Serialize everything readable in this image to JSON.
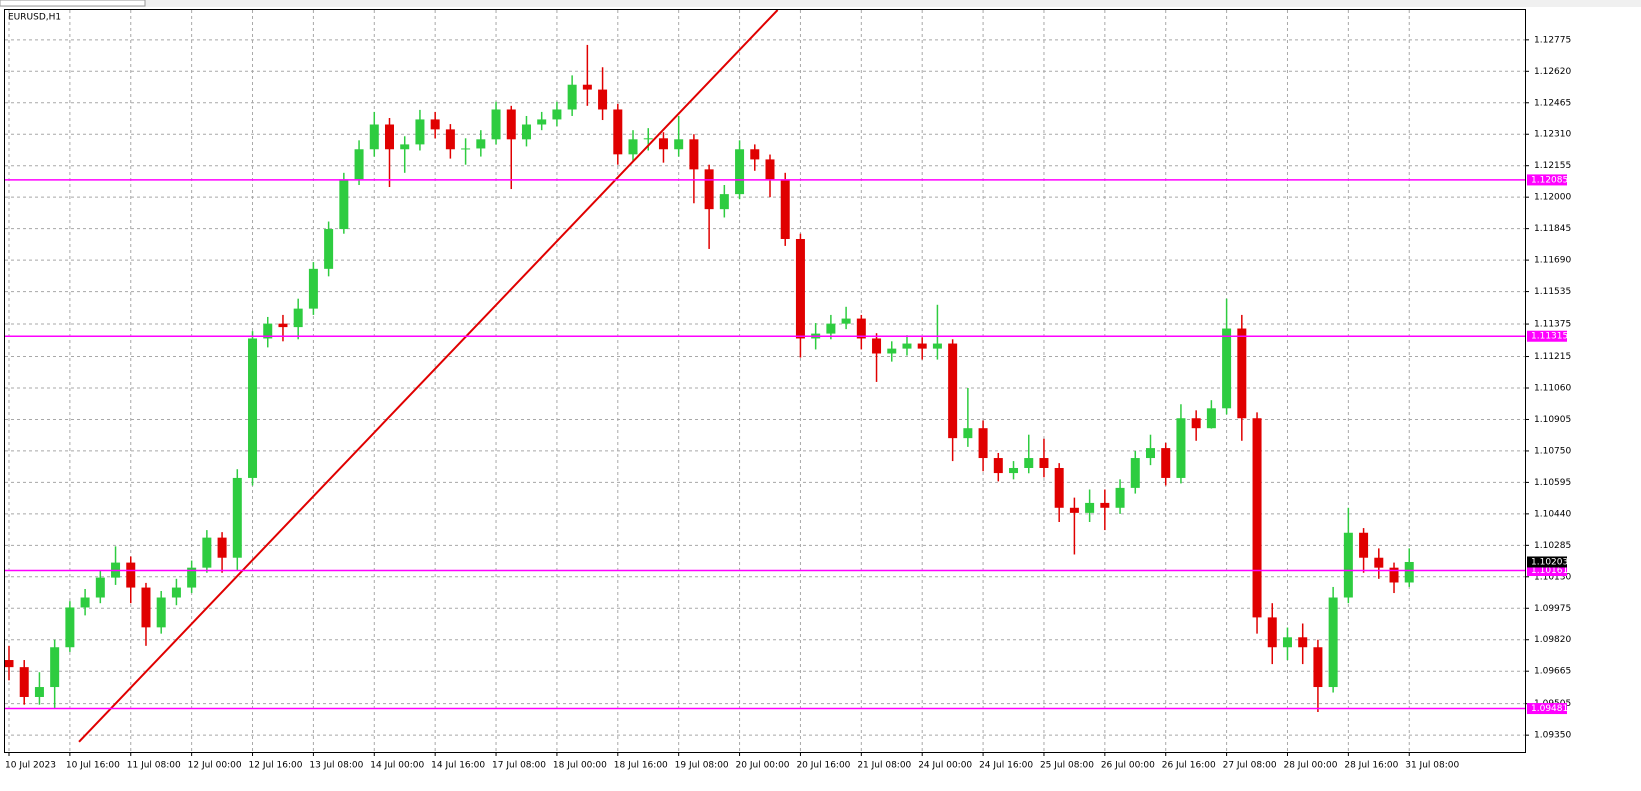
{
  "chart_data": {
    "type": "candlestick",
    "title": "EURUSD,H1",
    "categories": [
      "10 Jul 2023",
      null,
      null,
      null,
      "10 Jul 16:00",
      null,
      null,
      null,
      "11 Jul 08:00",
      null,
      null,
      null,
      "12 Jul 00:00",
      null,
      null,
      null,
      "12 Jul 16:00",
      null,
      null,
      null,
      "13 Jul 08:00",
      null,
      null,
      null,
      "14 Jul 00:00",
      null,
      null,
      null,
      "14 Jul 16:00",
      null,
      null,
      null,
      "17 Jul 08:00",
      null,
      null,
      null,
      "18 Jul 00:00",
      null,
      null,
      null,
      "18 Jul 16:00",
      null,
      null,
      null,
      "19 Jul 08:00",
      null,
      null,
      null,
      "20 Jul 00:00",
      null,
      null,
      null,
      "20 Jul 16:00",
      null,
      null,
      null,
      "21 Jul 08:00",
      null,
      null,
      null,
      "24 Jul 00:00",
      null,
      null,
      null,
      "24 Jul 16:00",
      null,
      null,
      null,
      "25 Jul 08:00",
      null,
      null,
      null,
      "26 Jul 00:00",
      null,
      null,
      null,
      "26 Jul 16:00",
      null,
      null,
      null,
      "27 Jul 08:00",
      null,
      null,
      null,
      "28 Jul 00:00",
      null,
      null,
      null,
      "28 Jul 16:00",
      null,
      null,
      null,
      "31 Jul 08:00"
    ],
    "open": [
      1.0972,
      1.09685,
      1.09538,
      1.09587,
      1.09783,
      1.09979,
      1.10028,
      1.10126,
      1.102,
      1.10077,
      1.09881,
      1.10028,
      1.10077,
      1.10175,
      1.10323,
      1.10224,
      1.10617,
      1.11304,
      1.11377,
      1.1136,
      1.11451,
      1.11647,
      1.11843,
      1.12088,
      1.12236,
      1.12358,
      1.12236,
      1.1226,
      1.12383,
      1.12334,
      1.12236,
      1.1224,
      1.12285,
      1.12432,
      1.12285,
      1.12358,
      1.12383,
      1.12432,
      1.12554,
      1.1253,
      1.12432,
      1.12211,
      1.12285,
      1.1229,
      1.12236,
      1.12285,
      1.12137,
      1.11941,
      1.12015,
      1.12236,
      1.12186,
      1.12088,
      1.11794,
      1.11304,
      1.11328,
      1.11377,
      1.11402,
      1.11304,
      1.1123,
      1.11254,
      1.11279,
      1.11254,
      1.11279,
      1.10813,
      1.10862,
      1.10715,
      1.10641,
      1.10666,
      1.10715,
      1.10666,
      1.1047,
      1.10445,
      1.10494,
      1.1047,
      1.10568,
      1.10715,
      1.10764,
      1.10617,
      1.10911,
      1.10862,
      1.1096,
      1.11353,
      1.10911,
      1.0993,
      1.09783,
      1.09832,
      1.09783,
      1.09587,
      1.10028,
      1.10347,
      1.10224,
      1.10175,
      1.10102
    ],
    "high": [
      1.0979,
      1.0972,
      1.0966,
      1.0982,
      1.1001,
      1.1007,
      1.1016,
      1.1028,
      1.1023,
      1.101,
      1.1006,
      1.1012,
      1.1021,
      1.1036,
      1.1035,
      1.1066,
      1.1134,
      1.1141,
      1.1142,
      1.115,
      1.1168,
      1.1188,
      1.1212,
      1.1228,
      1.1242,
      1.1239,
      1.123,
      1.1243,
      1.1242,
      1.1236,
      1.1229,
      1.1233,
      1.1247,
      1.1245,
      1.124,
      1.1242,
      1.1247,
      1.126,
      1.1275,
      1.1264,
      1.1246,
      1.1233,
      1.1234,
      1.1232,
      1.124,
      1.1231,
      1.1216,
      1.1206,
      1.1228,
      1.1226,
      1.1221,
      1.1212,
      1.1182,
      1.1138,
      1.1142,
      1.1146,
      1.1142,
      1.1133,
      1.1129,
      1.1132,
      1.1131,
      1.1147,
      1.113,
      1.1106,
      1.109,
      1.1074,
      1.107,
      1.1083,
      1.1081,
      1.1069,
      1.1052,
      1.1056,
      1.1056,
      1.1061,
      1.1075,
      1.1083,
      1.1079,
      1.1098,
      1.1095,
      1.11,
      1.115,
      1.1142,
      1.1094,
      1.1,
      1.0988,
      1.099,
      1.0982,
      1.1008,
      1.1047,
      1.1037,
      1.1027,
      1.102,
      1.1027
    ],
    "low": [
      1.0962,
      1.095,
      1.095,
      1.09479,
      1.0976,
      1.0994,
      1.1,
      1.1009,
      1.1,
      1.0979,
      1.0985,
      1.0999,
      1.1005,
      1.1015,
      1.1015,
      1.1016,
      1.1058,
      1.1126,
      1.1129,
      1.113,
      1.1142,
      1.1161,
      1.1182,
      1.1206,
      1.122,
      1.1205,
      1.1212,
      1.1223,
      1.1229,
      1.1219,
      1.1216,
      1.122,
      1.1226,
      1.1204,
      1.1225,
      1.1233,
      1.1235,
      1.124,
      1.1245,
      1.1238,
      1.1216,
      1.1218,
      1.1223,
      1.1217,
      1.122,
      1.1197,
      1.11745,
      1.119,
      1.1199,
      1.1213,
      1.12,
      1.1176,
      1.1121,
      1.1125,
      1.113,
      1.1135,
      1.1125,
      1.1109,
      1.1119,
      1.1122,
      1.112,
      1.112,
      1.107,
      1.1077,
      1.1065,
      1.106,
      1.1061,
      1.1064,
      1.1062,
      1.104,
      1.1024,
      1.104,
      1.1036,
      1.1044,
      1.1054,
      1.1068,
      1.1058,
      1.1059,
      1.108,
      1.1086,
      1.1093,
      1.108,
      1.0985,
      1.097,
      1.0972,
      1.097,
      1.09464,
      1.0956,
      1.1,
      1.1015,
      1.1012,
      1.1005,
      1.1008
    ],
    "close": [
      1.09685,
      1.09538,
      1.09587,
      1.09783,
      1.09979,
      1.10028,
      1.10126,
      1.102,
      1.10077,
      1.09881,
      1.10028,
      1.10077,
      1.10175,
      1.10323,
      1.10224,
      1.10617,
      1.11304,
      1.11377,
      1.1136,
      1.11451,
      1.11647,
      1.11843,
      1.12088,
      1.12236,
      1.12358,
      1.12236,
      1.1226,
      1.12383,
      1.12334,
      1.12236,
      1.1224,
      1.12285,
      1.12432,
      1.12285,
      1.12358,
      1.12383,
      1.12432,
      1.12554,
      1.1253,
      1.12432,
      1.12211,
      1.12285,
      1.1229,
      1.12236,
      1.12285,
      1.12137,
      1.11941,
      1.12015,
      1.12236,
      1.12186,
      1.12088,
      1.11794,
      1.11304,
      1.11328,
      1.11377,
      1.11402,
      1.11304,
      1.1123,
      1.11254,
      1.11279,
      1.11254,
      1.11279,
      1.10813,
      1.10862,
      1.10715,
      1.10641,
      1.10666,
      1.10715,
      1.10666,
      1.1047,
      1.10445,
      1.10494,
      1.1047,
      1.10568,
      1.10715,
      1.10764,
      1.10617,
      1.10911,
      1.10862,
      1.1096,
      1.11353,
      1.10911,
      1.0993,
      1.09783,
      1.09832,
      1.09783,
      1.09587,
      1.10028,
      1.10347,
      1.10224,
      1.10175,
      1.10102,
      1.10203
    ],
    "ylim": [
      1.09267,
      1.12922
    ],
    "yticks": [
      1.12775,
      {
        "value": 1.1262,
        "label": "1.12620"
      },
      1.12465,
      {
        "value": 1.1231,
        "label": "1.12310"
      },
      1.12155,
      {
        "value": 1.12,
        "label": "1.12000"
      },
      1.11845,
      {
        "value": 1.1169,
        "label": "1.11690"
      },
      1.11535,
      1.11375,
      1.11215,
      {
        "value": 1.1106,
        "label": "1.11060"
      },
      1.10905,
      {
        "value": 1.1075,
        "label": "1.10750"
      },
      1.10595,
      {
        "value": 1.1044,
        "label": "1.10440"
      },
      1.10285,
      {
        "value": 1.1013,
        "label": "1.10130"
      },
      1.09975,
      {
        "value": 1.0982,
        "label": "1.09820"
      },
      1.09665,
      1.09505,
      {
        "value": 1.0935,
        "label": "1.09350"
      }
    ],
    "levels": [
      1.12085,
      1.11315,
      1.10161,
      1.09481
    ],
    "trendline": {
      "x": [
        4.6,
        50.5
      ],
      "y": [
        1.09317,
        1.12922
      ]
    },
    "grid": true,
    "colors": {
      "up": "#2ecc40",
      "down": "#e00000",
      "level": "#ff00ff",
      "trend": "#e00000"
    }
  }
}
